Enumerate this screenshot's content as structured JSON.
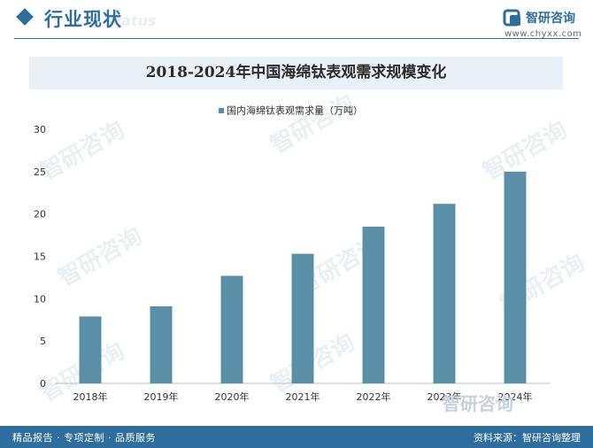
{
  "header": {
    "title": "行业现状",
    "ghost_text": "status",
    "logo_name": "智研咨询",
    "logo_url": "www.chyxx.com"
  },
  "watermark": {
    "text": "智研咨询"
  },
  "footer": {
    "left": "精品报告 · 专项定制 · 品质服务",
    "right": "资料来源：智研咨询整理"
  },
  "colors": {
    "brand": "#2d6e9e",
    "bar": "#5b8fa8",
    "title_bg": "#e9f1f7"
  },
  "chart_data": {
    "type": "bar",
    "title": "2018-2024年中国海绵钛表观需求规模变化",
    "categories": [
      "2018年",
      "2019年",
      "2020年",
      "2021年",
      "2022年",
      "2023年",
      "2024年"
    ],
    "series": [
      {
        "name": "国内海绵钛表观需求量（万吨）",
        "values": [
          7.9,
          9.1,
          12.7,
          15.3,
          18.5,
          21.2,
          25.0
        ]
      }
    ],
    "ylim": [
      0,
      30
    ],
    "yticks": [
      0,
      5,
      10,
      15,
      20,
      25,
      30
    ],
    "grid": false,
    "legend_position": "top-center"
  }
}
